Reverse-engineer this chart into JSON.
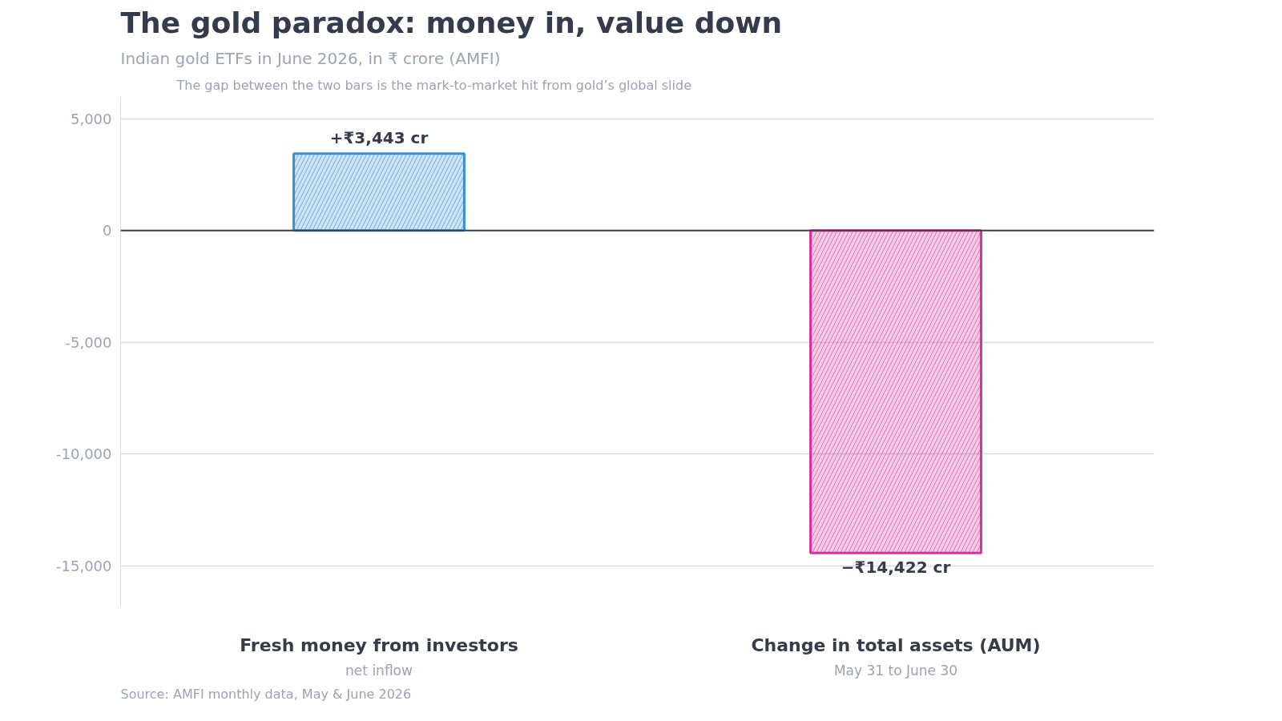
{
  "chart_data": {
    "type": "bar",
    "title": "The gold paradox: money in, value down",
    "subtitle": "Indian gold ETFs in June 2026, in ₹ crore (AMFI)",
    "categories": [
      "Fresh money from investors",
      "Change in total assets (AUM)"
    ],
    "values": [
      3443,
      -14422
    ],
    "colors": [
      "#3a8fd6",
      "#d6339a"
    ],
    "value_labels": [
      "+₹3,443 cr",
      "−₹14,422 cr"
    ],
    "ylim": [
      -16800,
      6000
    ],
    "yticks": [
      {
        "value": -15000,
        "label": "-15,000"
      },
      {
        "value": -10000,
        "label": "-10,000"
      },
      {
        "value": -5000,
        "label": "-5,000"
      },
      0,
      {
        "value": 5000,
        "label": "5,000"
      }
    ],
    "grid": "y",
    "ref_lines": [
      {
        "axis": "y",
        "value": 0,
        "color": "#3a4050"
      }
    ],
    "annotations": [
      "net inflow",
      "May 31 to June 30",
      "The gap between the two bars is the mark-to-market hit from gold’s global slide",
      "Source: AMFI monthly data, May & June 2026"
    ]
  }
}
